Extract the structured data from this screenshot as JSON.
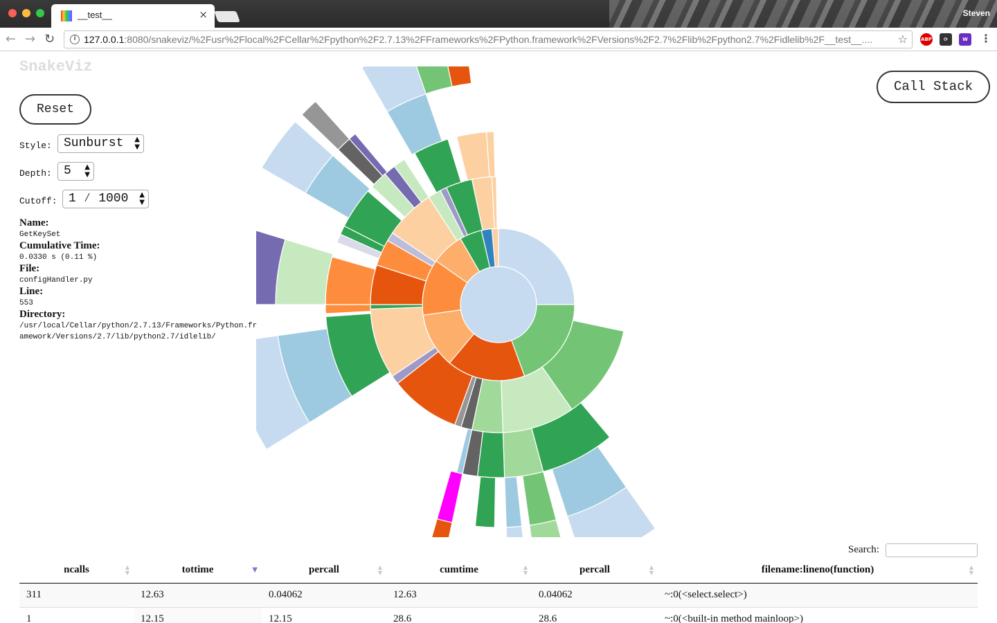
{
  "browser": {
    "tab_title": "__test__",
    "tab_close": "×",
    "profile_name": "Steven",
    "url_host": "127.0.0.1",
    "url_rest": ":8080/snakeviz/%2Fusr%2Flocal%2FCellar%2Fpython%2F2.7.13%2FFrameworks%2FPython.framework%2FVersions%2F2.7%2Flib%2Fpython2.7%2Fidlelib%2F__test__....",
    "extensions": [
      "ABP",
      "sync",
      "W"
    ]
  },
  "app": {
    "logo": "SnakeViz",
    "reset_label": "Reset",
    "callstack_label": "Call Stack"
  },
  "controls": {
    "style_label": "Style:",
    "style_value": "Sunburst",
    "depth_label": "Depth:",
    "depth_value": "5",
    "cutoff_label": "Cutoff:",
    "cutoff_value": "1 ⁄ 1000"
  },
  "info": {
    "name_label": "Name:",
    "name": "GetKeySet",
    "cumtime_label": "Cumulative Time:",
    "cumtime": "0.0330 s (0.11 %)",
    "file_label": "File:",
    "file": "configHandler.py",
    "line_label": "Line:",
    "line": "553",
    "dir_label": "Directory:",
    "dir": "/usr/local/Cellar/python/2.7.13/Frameworks/Python.framework/Versions/2.7/lib/python2.7/idlelib/"
  },
  "search": {
    "label": "Search:",
    "value": ""
  },
  "table": {
    "columns": [
      "ncalls",
      "tottime",
      "percall",
      "cumtime",
      "percall",
      "filename:lineno(function)"
    ],
    "sorted_column": 1,
    "rows": [
      [
        "311",
        "12.63",
        "0.04062",
        "12.63",
        "0.04062",
        "~:0(<select.select>)"
      ],
      [
        "1",
        "12.15",
        "12.15",
        "28.6",
        "28.6",
        "~:0(<built-in method mainloop>)"
      ]
    ]
  },
  "sunburst": {
    "rings": [
      [
        {
          "start": 0.0,
          "end": 360.0,
          "color": "#c6dbef"
        }
      ],
      [
        {
          "start": 0.0,
          "end": 90.0,
          "color": "#c6dbef"
        },
        {
          "start": 90.0,
          "end": 160.0,
          "color": "#74c476"
        },
        {
          "start": 160.0,
          "end": 220.0,
          "color": "#e6550d"
        },
        {
          "start": 220.0,
          "end": 262.0,
          "color": "#fdae6b"
        },
        {
          "start": 262.0,
          "end": 305.0,
          "color": "#fd8d3c"
        },
        {
          "start": 305.0,
          "end": 330.0,
          "color": "#fdae6b"
        },
        {
          "start": 330.0,
          "end": 347.0,
          "color": "#31a354"
        },
        {
          "start": 347.0,
          "end": 355.0,
          "color": "#3182bd"
        },
        {
          "start": 355.0,
          "end": 360.0,
          "color": "#fdd0a2"
        }
      ],
      [
        {
          "start": 102.0,
          "end": 145.0,
          "color": "#74c476"
        },
        {
          "start": 145.0,
          "end": 178.0,
          "color": "#c7e9c0"
        },
        {
          "start": 178.0,
          "end": 192.0,
          "color": "#a1d99b"
        },
        {
          "start": 192.0,
          "end": 197.0,
          "color": "#636363"
        },
        {
          "start": 197.0,
          "end": 200.0,
          "color": "#969696"
        },
        {
          "start": 200.0,
          "end": 232.0,
          "color": "#e6550d"
        },
        {
          "start": 232.0,
          "end": 236.0,
          "color": "#9e9ac8"
        },
        {
          "start": 236.0,
          "end": 268.0,
          "color": "#fdd0a2"
        },
        {
          "start": 268.0,
          "end": 270.0,
          "color": "#31a354"
        },
        {
          "start": 270.0,
          "end": 288.0,
          "color": "#e6550d"
        },
        {
          "start": 288.0,
          "end": 300.0,
          "color": "#fd8d3c"
        },
        {
          "start": 300.0,
          "end": 304.0,
          "color": "#bcbddc"
        },
        {
          "start": 304.0,
          "end": 327.0,
          "color": "#fdd0a2"
        },
        {
          "start": 327.0,
          "end": 333.0,
          "color": "#c7e9c0"
        },
        {
          "start": 333.0,
          "end": 336.0,
          "color": "#9e9ac8"
        },
        {
          "start": 336.0,
          "end": 348.0,
          "color": "#31a354"
        },
        {
          "start": 348.0,
          "end": 357.0,
          "color": "#fdd0a2"
        },
        {
          "start": 357.0,
          "end": 359.0,
          "color": "#fdd0a2"
        }
      ],
      [
        {
          "start": 140.0,
          "end": 165.0,
          "color": "#31a354"
        },
        {
          "start": 165.0,
          "end": 178.0,
          "color": "#a1d99b"
        },
        {
          "start": 178.0,
          "end": 187.0,
          "color": "#31a354"
        },
        {
          "start": 187.0,
          "end": 192.0,
          "color": "#636363"
        },
        {
          "start": 192.0,
          "end": 194.0,
          "color": "#9ecae1"
        },
        {
          "start": 238.0,
          "end": 266.0,
          "color": "#31a354"
        },
        {
          "start": 267.0,
          "end": 270.0,
          "color": "#fd8d3c"
        },
        {
          "start": 270.0,
          "end": 286.0,
          "color": "#fd8d3c"
        },
        {
          "start": 291.0,
          "end": 294.0,
          "color": "#dadaeb"
        },
        {
          "start": 294.0,
          "end": 297.0,
          "color": "#31a354"
        },
        {
          "start": 297.0,
          "end": 311.0,
          "color": "#31a354"
        },
        {
          "start": 313.0,
          "end": 319.0,
          "color": "#c7e9c0"
        },
        {
          "start": 319.0,
          "end": 323.0,
          "color": "#756bb1"
        },
        {
          "start": 323.0,
          "end": 327.0,
          "color": "#c7e9c0"
        },
        {
          "start": 331.0,
          "end": 343.0,
          "color": "#31a354"
        },
        {
          "start": 346.0,
          "end": 356.0,
          "color": "#fdd0a2"
        },
        {
          "start": 356.0,
          "end": 358.5,
          "color": "#fdd0a2"
        }
      ],
      [
        {
          "start": 145.0,
          "end": 162.0,
          "color": "#9ecae1"
        },
        {
          "start": 165.0,
          "end": 172.0,
          "color": "#74c476"
        },
        {
          "start": 174.0,
          "end": 178.0,
          "color": "#9ecae1"
        },
        {
          "start": 181.0,
          "end": 186.0,
          "color": "#31a354"
        },
        {
          "start": 192.0,
          "end": 196.0,
          "color": "#ff00ff"
        },
        {
          "start": 238.0,
          "end": 262.0,
          "color": "#9ecae1"
        },
        {
          "start": 270.0,
          "end": 287.0,
          "color": "#c7e9c0"
        },
        {
          "start": 300.0,
          "end": 312.0,
          "color": "#9ecae1"
        },
        {
          "start": 314.0,
          "end": 318.0,
          "color": "#636363"
        },
        {
          "start": 318.0,
          "end": 320.0,
          "color": "#756bb1"
        },
        {
          "start": 330.0,
          "end": 341.0,
          "color": "#9ecae1"
        }
      ],
      [
        {
          "start": 145.0,
          "end": 162.0,
          "color": "#c6dbef"
        },
        {
          "start": 165.0,
          "end": 172.0,
          "color": "#a1d99b"
        },
        {
          "start": 174.0,
          "end": 178.0,
          "color": "#c6dbef"
        },
        {
          "start": 192.0,
          "end": 196.0,
          "color": "#e6550d"
        },
        {
          "start": 238.0,
          "end": 262.0,
          "color": "#c6dbef"
        },
        {
          "start": 270.0,
          "end": 287.0,
          "color": "#756bb1"
        },
        {
          "start": 300.0,
          "end": 312.0,
          "color": "#c6dbef"
        },
        {
          "start": 314.0,
          "end": 318.0,
          "color": "#969696"
        },
        {
          "start": 330.0,
          "end": 341.0,
          "color": "#c6dbef"
        },
        {
          "start": 341.0,
          "end": 348.0,
          "color": "#74c476"
        },
        {
          "start": 348.0,
          "end": 353.0,
          "color": "#e6550d"
        }
      ]
    ]
  }
}
